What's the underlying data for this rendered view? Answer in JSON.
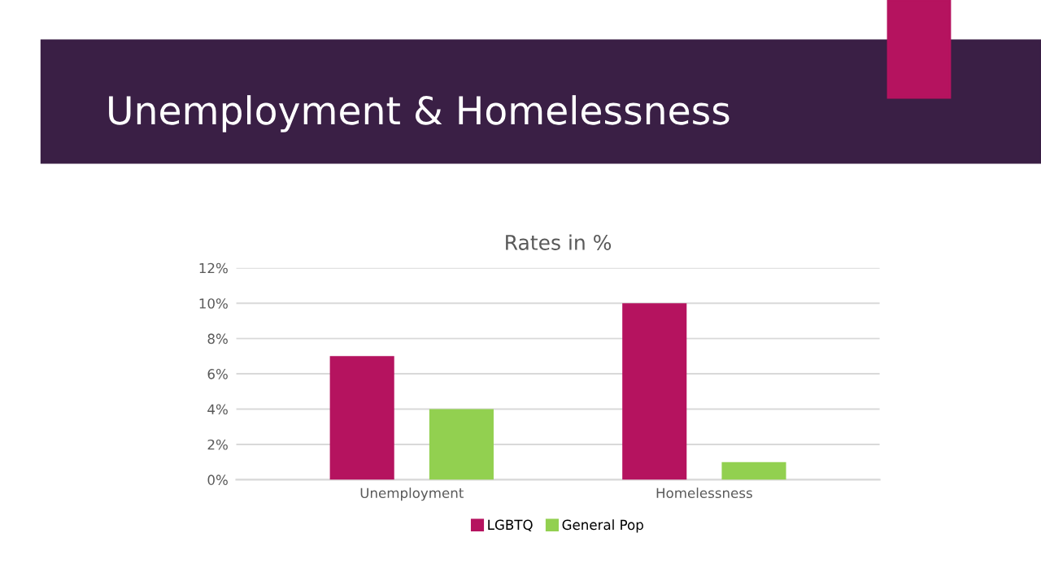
{
  "chart_data": {
    "type": "bar",
    "title": "Unemployment & Homelessness",
    "subtitle": "Rates in %",
    "categories": [
      "Unemployment",
      "Homelessness"
    ],
    "series": [
      {
        "name": "LGBTQ",
        "color": "#b5135f",
        "values": [
          7,
          10
        ]
      },
      {
        "name": "General Pop",
        "color": "#92d050",
        "values": [
          4,
          1
        ]
      }
    ],
    "ylim": [
      0,
      12
    ],
    "yticks": [
      {
        "value": 0,
        "label": "0%"
      },
      {
        "value": 2,
        "label": "2%"
      },
      {
        "value": 4,
        "label": "4%"
      },
      {
        "value": 6,
        "label": "6%"
      },
      {
        "value": 8,
        "label": "8%"
      },
      {
        "value": 10,
        "label": "10%"
      },
      {
        "value": 12,
        "label": "12%"
      }
    ],
    "grid": "y",
    "legend": "bottom"
  }
}
